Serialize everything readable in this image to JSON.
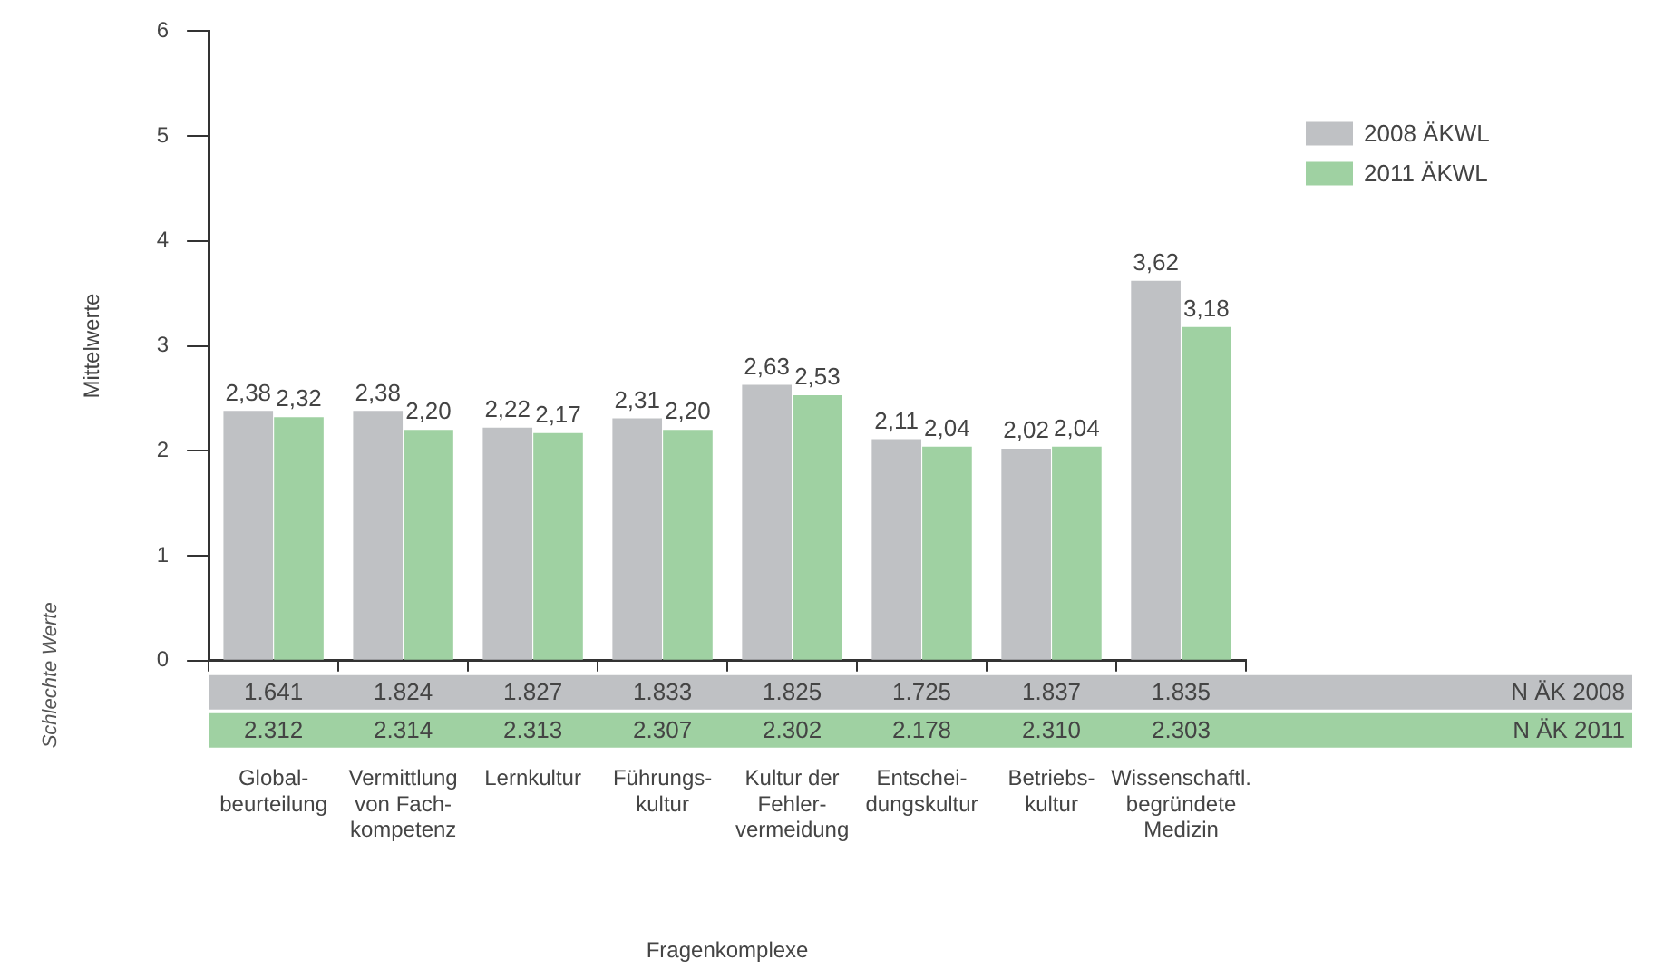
{
  "chart_data": {
    "type": "bar",
    "xlabel": "Fragenkomplexe",
    "ylabel": "Mittelwerte",
    "categories": [
      "Global-\nbeurteilung",
      "Vermittlung\nvon Fach-\nkompetenz",
      "Lernkultur",
      "Führungs-\nkultur",
      "Kultur der\nFehler-\nvermeidung",
      "Entschei-\ndungskultur",
      "Betriebs-\nkultur",
      "Wissenschaftl.\nbegründete\nMedizin"
    ],
    "series": [
      {
        "name": "2008 ÄKWL",
        "color": "#bfc1c4",
        "values": [
          2.38,
          2.38,
          2.22,
          2.31,
          2.63,
          2.11,
          2.02,
          3.62
        ],
        "value_labels": [
          "2,38",
          "2,38",
          "2,22",
          "2,31",
          "2,63",
          "2,11",
          "2,02",
          "3,62"
        ]
      },
      {
        "name": "2011 ÄKWL",
        "color": "#9fd1a2",
        "values": [
          2.32,
          2.2,
          2.17,
          2.2,
          2.53,
          2.04,
          2.04,
          3.18
        ],
        "value_labels": [
          "2,32",
          "2,20",
          "2,17",
          "2,20",
          "2,53",
          "2,04",
          "2,04",
          "3,18"
        ]
      }
    ],
    "ylim": [
      0,
      6
    ],
    "yticks": [
      0,
      1,
      2,
      3,
      4,
      5,
      6
    ],
    "grid": false,
    "legend": "top right",
    "annotations": [
      "1.641",
      "1.824",
      "1.827",
      "1.833",
      "1.825",
      "1.725",
      "1.837",
      "1.835",
      "N ÄK 2008",
      "2.312",
      "2.314",
      "2.313",
      "2.307",
      "2.302",
      "2.178",
      "2.310",
      "2.303",
      "N ÄK 2011",
      "Schlechte Werte"
    ]
  }
}
